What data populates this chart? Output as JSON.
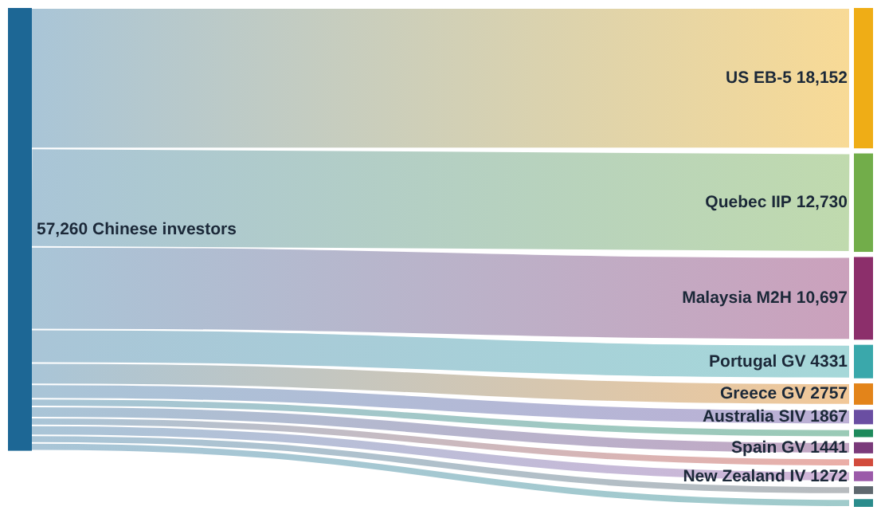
{
  "chart_data": {
    "type": "other",
    "categories": [
      "Chinese investors",
      "US EB-5",
      "Quebec IIP",
      "Malaysia M2H",
      "Portugal GV",
      "Greece GV",
      "Australia SIV",
      null,
      "Spain GV",
      null,
      "New Zealand IV",
      null,
      null
    ],
    "values": [
      57260,
      18152,
      12730,
      10697,
      4331,
      2757,
      1867,
      null,
      1441,
      null,
      1272,
      null,
      null
    ],
    "value_labels": [
      "57,260",
      "18,152",
      "12,730",
      "10,697",
      "4331",
      "2757",
      "1867",
      null,
      "1441",
      null,
      "1272",
      null,
      null
    ],
    "colors": [
      "#1d6795",
      "#efad16",
      "#72ad4a",
      "#8c2f6b",
      "#3aa8ab",
      "#e3841a",
      "#6a4ea2",
      "#1e8a5c",
      "#7a3a7a",
      "#d24b3c",
      "#9b5aa9",
      "#5e686e",
      "#2b8c8c"
    ]
  }
}
